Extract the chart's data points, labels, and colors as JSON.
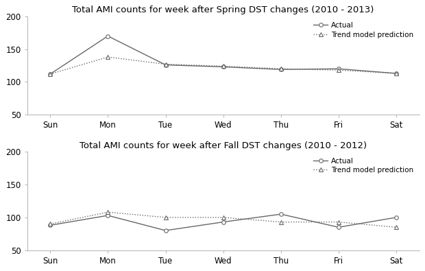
{
  "days": [
    "Sun",
    "Mon",
    "Tue",
    "Wed",
    "Thu",
    "Fri",
    "Sat"
  ],
  "spring_actual": [
    112,
    170,
    126,
    123,
    119,
    120,
    113
  ],
  "spring_trend": [
    112,
    138,
    127,
    124,
    120,
    118,
    113
  ],
  "fall_actual": [
    88,
    103,
    80,
    93,
    105,
    85,
    100
  ],
  "fall_trend": [
    90,
    108,
    100,
    100,
    93,
    93,
    85
  ],
  "title_spring": "Total AMI counts for week after Spring DST changes (2010 - 2013)",
  "title_fall": "Total AMI counts for week after Fall DST changes (2010 - 2012)",
  "legend_actual": "Actual",
  "legend_trend": "Trend model prediction",
  "ylim": [
    50,
    200
  ],
  "yticks": [
    50,
    100,
    150,
    200
  ],
  "line_color": "#666666",
  "bg_color": "#ffffff",
  "title_fontsize": 9.5,
  "label_fontsize": 8.5
}
